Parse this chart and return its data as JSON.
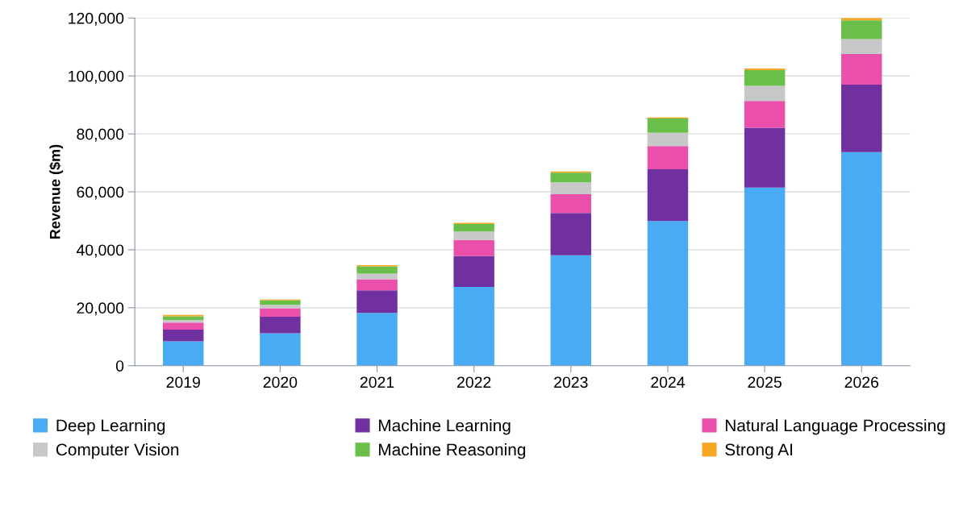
{
  "chart_data": {
    "type": "bar",
    "stacked": true,
    "ylabel": "Revenue ($m)",
    "categories": [
      "2019",
      "2020",
      "2021",
      "2022",
      "2023",
      "2024",
      "2025",
      "2026"
    ],
    "series": [
      {
        "name": "Deep Learning",
        "color": "#4aabf5",
        "values": [
          8400,
          11200,
          18200,
          27200,
          38100,
          49900,
          61500,
          73700
        ]
      },
      {
        "name": "Machine Learning",
        "color": "#7030a0",
        "values": [
          4000,
          5700,
          7800,
          10600,
          14600,
          17900,
          20600,
          23300
        ]
      },
      {
        "name": "Natural Language Processing",
        "color": "#eb4fac",
        "values": [
          2500,
          2900,
          3800,
          5600,
          6500,
          8000,
          9300,
          10600
        ]
      },
      {
        "name": "Computer Vision",
        "color": "#c8c8c8",
        "values": [
          900,
          1200,
          2000,
          2900,
          4100,
          4600,
          5200,
          5100
        ]
      },
      {
        "name": "Machine Reasoning",
        "color": "#6abf4b",
        "values": [
          1200,
          1600,
          2500,
          2600,
          3300,
          4900,
          5400,
          6500
        ]
      },
      {
        "name": "Strong AI",
        "color": "#f5a623",
        "values": [
          500,
          300,
          400,
          400,
          400,
          400,
          600,
          800
        ]
      }
    ],
    "ylim": [
      0,
      120000
    ],
    "yticks": [
      {
        "value": 0,
        "label": "0"
      },
      {
        "value": 20000,
        "label": "20,000"
      },
      {
        "value": 40000,
        "label": "40,000"
      },
      {
        "value": 60000,
        "label": "60,000"
      },
      {
        "value": 80000,
        "label": "80,000"
      },
      {
        "value": 100000,
        "label": "100,000"
      },
      {
        "value": 120000,
        "label": "120,000"
      }
    ],
    "grid": "y",
    "legend": "bottom"
  }
}
